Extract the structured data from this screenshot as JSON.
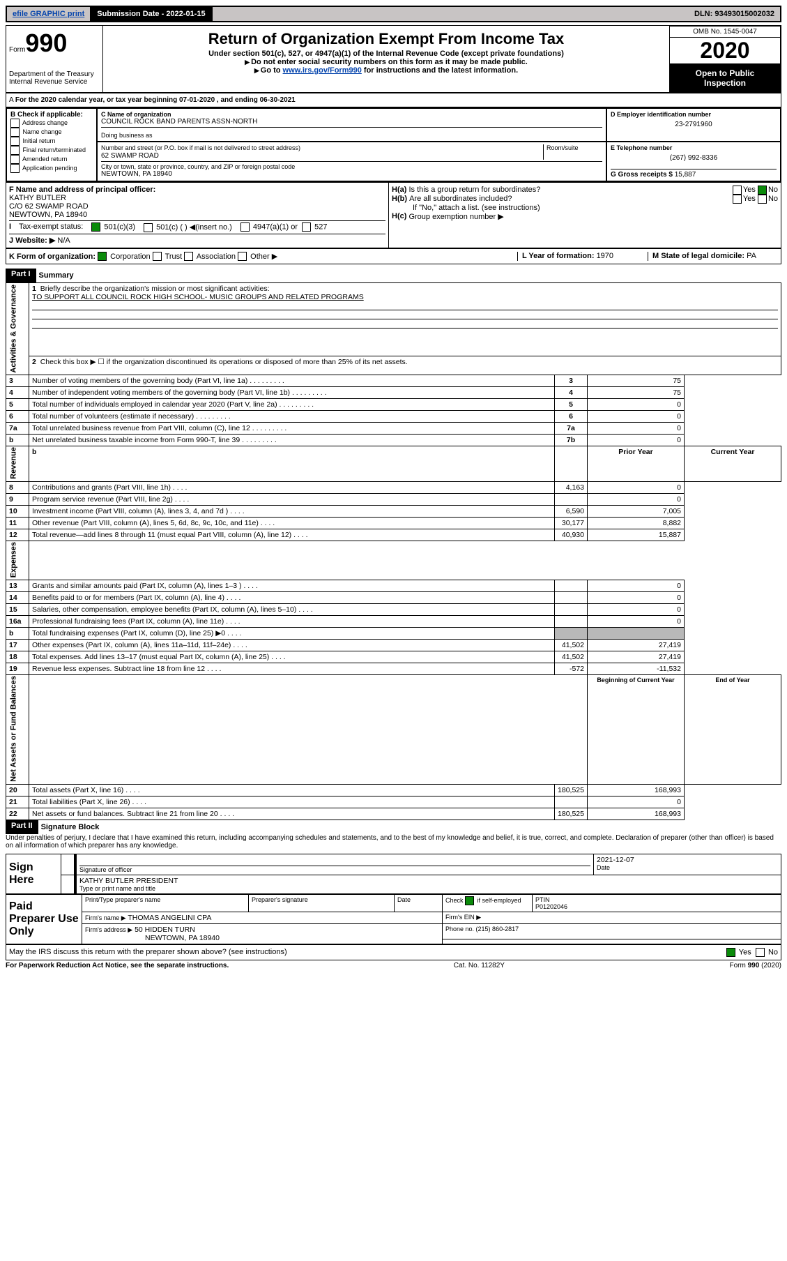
{
  "topbar": {
    "efile": "efile GRAPHIC print",
    "sub_label": "Submission Date - 2022-01-15",
    "dln": "DLN: 93493015002032"
  },
  "header": {
    "form_word": "Form",
    "form_num": "990",
    "dept1": "Department of the Treasury",
    "dept2": "Internal Revenue Service",
    "title": "Return of Organization Exempt From Income Tax",
    "sub1": "Under section 501(c), 527, or 4947(a)(1) of the Internal Revenue Code (except private foundations)",
    "sub2": "Do not enter social security numbers on this form as it may be made public.",
    "sub3_pre": "Go to ",
    "sub3_link": "www.irs.gov/Form990",
    "sub3_post": " for instructions and the latest information.",
    "omb": "OMB No. 1545-0047",
    "year": "2020",
    "inspect1": "Open to Public",
    "inspect2": "Inspection"
  },
  "line_a": "For the 2020 calendar year, or tax year beginning 07-01-2020    , and ending 06-30-2021",
  "b": {
    "title": "B Check if applicable:",
    "opts": [
      "Address change",
      "Name change",
      "Initial return",
      "Final return/terminated",
      "Amended return",
      "Application pending"
    ]
  },
  "c": {
    "name_lbl": "C Name of organization",
    "name": "COUNCIL ROCK BAND PARENTS ASSN-NORTH",
    "dba_lbl": "Doing business as",
    "addr_lbl": "Number and street (or P.O. box if mail is not delivered to street address)",
    "room_lbl": "Room/suite",
    "addr": "62 SWAMP ROAD",
    "city_lbl": "City or town, state or province, country, and ZIP or foreign postal code",
    "city": "NEWTOWN, PA  18940"
  },
  "d": {
    "lbl": "D Employer identification number",
    "val": "23-2791960"
  },
  "e": {
    "lbl": "E Telephone number",
    "val": "(267) 992-8336"
  },
  "g": {
    "lbl": "G Gross receipts $ ",
    "val": "15,887"
  },
  "f": {
    "lbl": "F  Name and address of principal officer:",
    "l1": "KATHY BUTLER",
    "l2": "C/O 62 SWAMP ROAD",
    "l3": "NEWTOWN, PA  18940"
  },
  "h": {
    "a": "Is this a group return for subordinates?",
    "b": "Are all subordinates included?",
    "b_note": "If \"No,\" attach a list. (see instructions)",
    "c": "Group exemption number ▶",
    "yes": "Yes",
    "no": "No"
  },
  "i": {
    "lbl": "Tax-exempt status:",
    "o1": "501(c)(3)",
    "o2": "501(c) (  ) ◀(insert no.)",
    "o3": "4947(a)(1) or",
    "o4": "527"
  },
  "j": {
    "lbl": "Website: ▶",
    "val": "N/A"
  },
  "k": {
    "lbl": "K Form of organization:",
    "o1": "Corporation",
    "o2": "Trust",
    "o3": "Association",
    "o4": "Other ▶"
  },
  "l": {
    "lbl": "L Year of formation: ",
    "val": "1970"
  },
  "m": {
    "lbl": "M State of legal domicile: ",
    "val": "PA"
  },
  "part1": {
    "label": "Part I",
    "title": "Summary"
  },
  "s1": {
    "q": "Briefly describe the organization's mission or most significant activities:",
    "a": "TO SUPPORT ALL COUNCIL ROCK HIGH SCHOOL- MUSIC GROUPS AND RELATED PROGRAMS"
  },
  "s2": "Check this box ▶ ☐  if the organization discontinued its operations or disposed of more than 25% of its net assets.",
  "rows_gov": [
    {
      "n": "3",
      "t": "Number of voting members of the governing body (Part VI, line 1a)",
      "box": "3",
      "v": "75"
    },
    {
      "n": "4",
      "t": "Number of independent voting members of the governing body (Part VI, line 1b)",
      "box": "4",
      "v": "75"
    },
    {
      "n": "5",
      "t": "Total number of individuals employed in calendar year 2020 (Part V, line 2a)",
      "box": "5",
      "v": "0"
    },
    {
      "n": "6",
      "t": "Total number of volunteers (estimate if necessary)",
      "box": "6",
      "v": "0"
    },
    {
      "n": "7a",
      "t": "Total unrelated business revenue from Part VIII, column (C), line 12",
      "box": "7a",
      "v": "0"
    },
    {
      "n": "b",
      "t": "Net unrelated business taxable income from Form 990-T, line 39",
      "box": "7b",
      "v": "0"
    }
  ],
  "col_h": {
    "n": "b",
    "prior": "Prior Year",
    "curr": "Current Year"
  },
  "rows_rev": [
    {
      "n": "8",
      "t": "Contributions and grants (Part VIII, line 1h)",
      "p": "4,163",
      "c": "0"
    },
    {
      "n": "9",
      "t": "Program service revenue (Part VIII, line 2g)",
      "p": "",
      "c": "0"
    },
    {
      "n": "10",
      "t": "Investment income (Part VIII, column (A), lines 3, 4, and 7d )",
      "p": "6,590",
      "c": "7,005"
    },
    {
      "n": "11",
      "t": "Other revenue (Part VIII, column (A), lines 5, 6d, 8c, 9c, 10c, and 11e)",
      "p": "30,177",
      "c": "8,882"
    },
    {
      "n": "12",
      "t": "Total revenue—add lines 8 through 11 (must equal Part VIII, column (A), line 12)",
      "p": "40,930",
      "c": "15,887"
    }
  ],
  "rows_exp": [
    {
      "n": "13",
      "t": "Grants and similar amounts paid (Part IX, column (A), lines 1–3 )",
      "p": "",
      "c": "0"
    },
    {
      "n": "14",
      "t": "Benefits paid to or for members (Part IX, column (A), line 4)",
      "p": "",
      "c": "0"
    },
    {
      "n": "15",
      "t": "Salaries, other compensation, employee benefits (Part IX, column (A), lines 5–10)",
      "p": "",
      "c": "0"
    },
    {
      "n": "16a",
      "t": "Professional fundraising fees (Part IX, column (A), line 11e)",
      "p": "",
      "c": "0"
    },
    {
      "n": "b",
      "t": "Total fundraising expenses (Part IX, column (D), line 25) ▶0",
      "p": "shade",
      "c": "shade"
    },
    {
      "n": "17",
      "t": "Other expenses (Part IX, column (A), lines 11a–11d, 11f–24e)",
      "p": "41,502",
      "c": "27,419"
    },
    {
      "n": "18",
      "t": "Total expenses. Add lines 13–17 (must equal Part IX, column (A), line 25)",
      "p": "41,502",
      "c": "27,419"
    },
    {
      "n": "19",
      "t": "Revenue less expenses. Subtract line 18 from line 12",
      "p": "-572",
      "c": "-11,532"
    }
  ],
  "col_h2": {
    "prior": "Beginning of Current Year",
    "curr": "End of Year"
  },
  "rows_net": [
    {
      "n": "20",
      "t": "Total assets (Part X, line 16)",
      "p": "180,525",
      "c": "168,993"
    },
    {
      "n": "21",
      "t": "Total liabilities (Part X, line 26)",
      "p": "",
      "c": "0"
    },
    {
      "n": "22",
      "t": "Net assets or fund balances. Subtract line 21 from line 20",
      "p": "180,525",
      "c": "168,993"
    }
  ],
  "vlabels": {
    "gov": "Activities & Governance",
    "rev": "Revenue",
    "exp": "Expenses",
    "net": "Net Assets or Fund Balances"
  },
  "part2": {
    "label": "Part II",
    "title": "Signature Block"
  },
  "penalty": "Under penalties of perjury, I declare that I have examined this return, including accompanying schedules and statements, and to the best of my knowledge and belief, it is true, correct, and complete. Declaration of preparer (other than officer) is based on all information of which preparer has any knowledge.",
  "sign": {
    "here": "Sign Here",
    "sig_lbl": "Signature of officer",
    "date": "2021-12-07",
    "date_lbl": "Date",
    "name": "KATHY BUTLER  PRESIDENT",
    "name_lbl": "Type or print name and title"
  },
  "prep": {
    "here": "Paid Preparer Use Only",
    "c1": "Print/Type preparer's name",
    "c2": "Preparer's signature",
    "c3": "Date",
    "c4_pre": "Check",
    "c4_post": "if self-employed",
    "c5": "PTIN",
    "ptin": "P01202046",
    "firm_lbl": "Firm's name    ▶",
    "firm": "THOMAS ANGELINI CPA",
    "ein_lbl": "Firm's EIN ▶",
    "addr_lbl": "Firm's address ▶",
    "addr1": "50 HIDDEN TURN",
    "addr2": "NEWTOWN, PA  18940",
    "phone_lbl": "Phone no. ",
    "phone": "(215) 860-2817"
  },
  "irs_q": "May the IRS discuss this return with the preparer shown above? (see instructions)",
  "footer": {
    "l": "For Paperwork Reduction Act Notice, see the separate instructions.",
    "m": "Cat. No. 11282Y",
    "r": "Form 990 (2020)"
  },
  "colors": {
    "green": "#0a8a0a",
    "black": "#000",
    "shade": "#b8b8b8"
  }
}
